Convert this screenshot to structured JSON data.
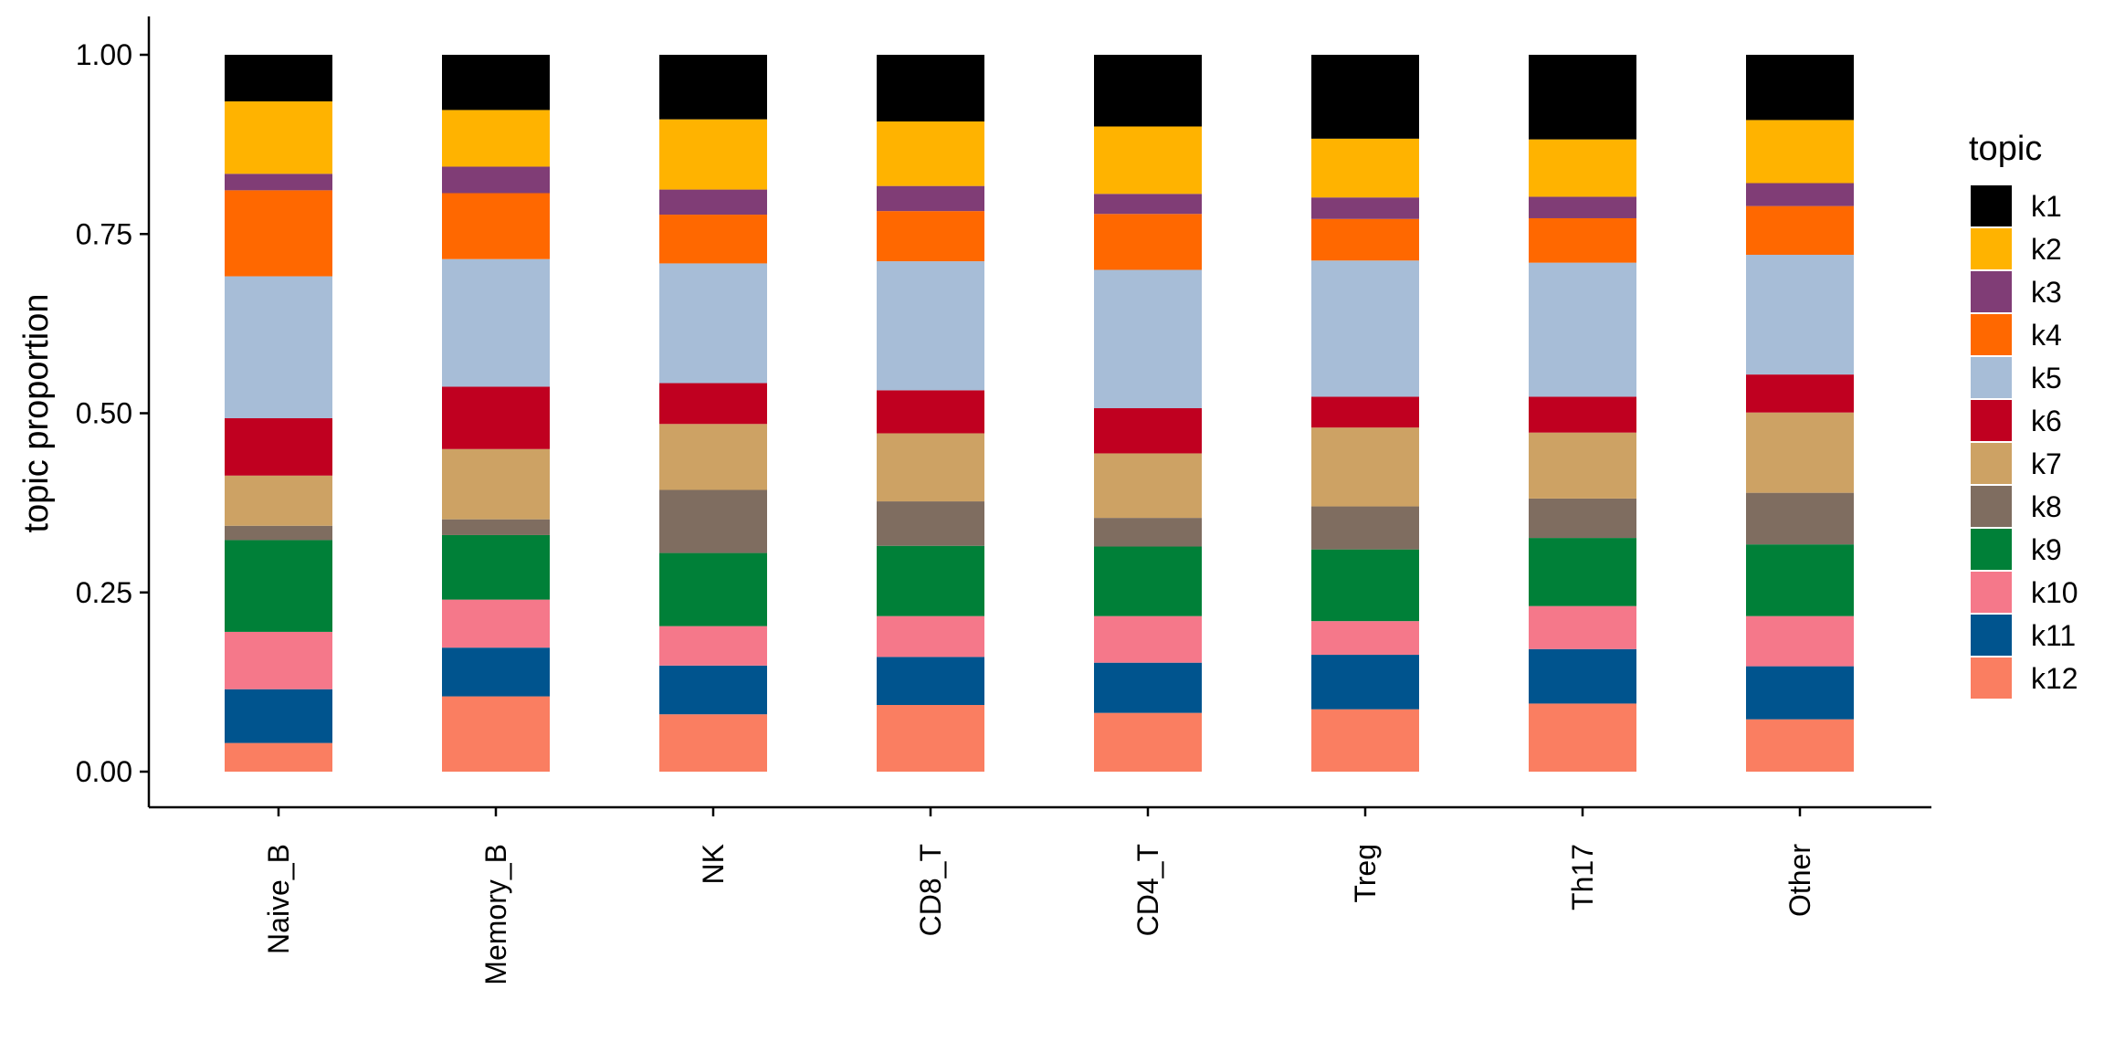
{
  "chart_data": {
    "type": "bar",
    "stacked": true,
    "xlabel": "",
    "ylabel": "topic proportion",
    "ylim": [
      0,
      1
    ],
    "yticks": [
      "0.00",
      "0.25",
      "0.50",
      "0.75",
      "1.00"
    ],
    "grid": false,
    "legend": {
      "title": "topic",
      "placement": "right"
    },
    "categories": [
      "Naive_B",
      "Memory_B",
      "NK",
      "CD8_T",
      "CD4_T",
      "Treg",
      "Th17",
      "Other"
    ],
    "series": [
      {
        "name": "k12",
        "color": "#FA7E61",
        "values": [
          0.04,
          0.105,
          0.08,
          0.093,
          0.082,
          0.087,
          0.095,
          0.073
        ]
      },
      {
        "name": "k11",
        "color": "#00548E",
        "values": [
          0.075,
          0.068,
          0.068,
          0.067,
          0.07,
          0.076,
          0.076,
          0.074
        ]
      },
      {
        "name": "k10",
        "color": "#F5788A",
        "values": [
          0.08,
          0.067,
          0.055,
          0.057,
          0.065,
          0.047,
          0.06,
          0.07
        ]
      },
      {
        "name": "k9",
        "color": "#008038",
        "values": [
          0.128,
          0.09,
          0.102,
          0.098,
          0.097,
          0.1,
          0.095,
          0.1
        ]
      },
      {
        "name": "k8",
        "color": "#7F6D60",
        "values": [
          0.02,
          0.022,
          0.088,
          0.062,
          0.04,
          0.06,
          0.055,
          0.072
        ]
      },
      {
        "name": "k7",
        "color": "#CDA264",
        "values": [
          0.07,
          0.098,
          0.092,
          0.095,
          0.09,
          0.11,
          0.092,
          0.112
        ]
      },
      {
        "name": "k6",
        "color": "#C00020",
        "values": [
          0.08,
          0.087,
          0.057,
          0.06,
          0.063,
          0.043,
          0.05,
          0.053
        ]
      },
      {
        "name": "k5",
        "color": "#A7BDD7",
        "values": [
          0.198,
          0.178,
          0.167,
          0.18,
          0.193,
          0.19,
          0.187,
          0.167
        ]
      },
      {
        "name": "k4",
        "color": "#FF6800",
        "values": [
          0.12,
          0.092,
          0.068,
          0.07,
          0.078,
          0.058,
          0.062,
          0.068
        ]
      },
      {
        "name": "k3",
        "color": "#803D76",
        "values": [
          0.023,
          0.037,
          0.035,
          0.035,
          0.028,
          0.03,
          0.03,
          0.032
        ]
      },
      {
        "name": "k2",
        "color": "#FFB300",
        "values": [
          0.101,
          0.079,
          0.098,
          0.09,
          0.094,
          0.082,
          0.08,
          0.088
        ]
      },
      {
        "name": "k1",
        "color": "#000000",
        "values": [
          0.065,
          0.077,
          0.09,
          0.093,
          0.1,
          0.117,
          0.118,
          0.091
        ]
      }
    ]
  }
}
